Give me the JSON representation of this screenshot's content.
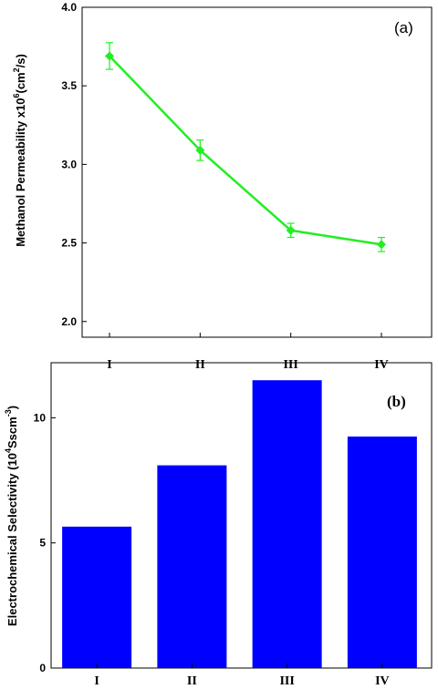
{
  "chart_data": [
    {
      "type": "line",
      "panel_label": "(a)",
      "categories": [
        "I",
        "II",
        "III",
        "IV"
      ],
      "series": [
        {
          "values": [
            3.69,
            3.09,
            2.58,
            2.49
          ],
          "errors": [
            0.085,
            0.065,
            0.045,
            0.045
          ],
          "color": "#22ee22",
          "marker": "diamond"
        }
      ],
      "ylabel_main": "Methanol Permeability x10",
      "ylabel_exp": "6",
      "ylabel_mid": "(cm",
      "ylabel_exp2": "2",
      "ylabel_end": "/s)",
      "ylim": [
        1.9,
        4.0
      ],
      "yticks": [
        2.0,
        2.5,
        3.0,
        3.5,
        4.0
      ],
      "ytick_labels": [
        "2.0",
        "2.5",
        "3.0",
        "3.5",
        "4.0"
      ]
    },
    {
      "type": "bar",
      "panel_label": "(b)",
      "categories": [
        "I",
        "II",
        "III",
        "IV"
      ],
      "series": [
        {
          "values": [
            5.65,
            8.1,
            11.5,
            9.25
          ],
          "color": "#0000ff"
        }
      ],
      "ylabel_main": "Electrochemical Selectivity (10",
      "ylabel_exp": "4",
      "ylabel_mid": "Sscm",
      "ylabel_exp2": "-3",
      "ylabel_end": ")",
      "ylim": [
        0,
        12.2
      ],
      "yticks": [
        0,
        5,
        10
      ],
      "ytick_labels": [
        "0",
        "5",
        "10"
      ]
    }
  ]
}
